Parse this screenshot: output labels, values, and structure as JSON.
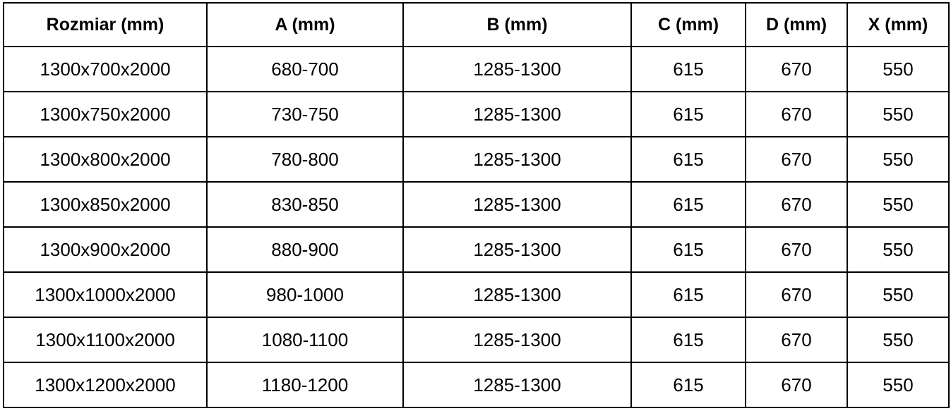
{
  "table": {
    "headers": [
      "Rozmiar (mm)",
      "A (mm)",
      "B (mm)",
      "C (mm)",
      "D (mm)",
      "X (mm)"
    ],
    "rows": [
      [
        "1300x700x2000",
        "680-700",
        "1285-1300",
        "615",
        "670",
        "550"
      ],
      [
        "1300x750x2000",
        "730-750",
        "1285-1300",
        "615",
        "670",
        "550"
      ],
      [
        "1300x800x2000",
        "780-800",
        "1285-1300",
        "615",
        "670",
        "550"
      ],
      [
        "1300x850x2000",
        "830-850",
        "1285-1300",
        "615",
        "670",
        "550"
      ],
      [
        "1300x900x2000",
        "880-900",
        "1285-1300",
        "615",
        "670",
        "550"
      ],
      [
        "1300x1000x2000",
        "980-1000",
        "1285-1300",
        "615",
        "670",
        "550"
      ],
      [
        "1300x1100x2000",
        "1080-1100",
        "1285-1300",
        "615",
        "670",
        "550"
      ],
      [
        "1300x1200x2000",
        "1180-1200",
        "1285-1300",
        "615",
        "670",
        "550"
      ]
    ]
  }
}
